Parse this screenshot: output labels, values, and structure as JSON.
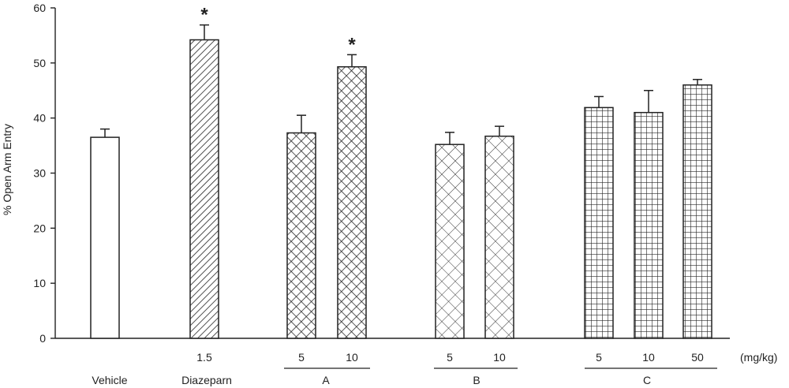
{
  "chart_data": {
    "type": "bar",
    "ylabel": "% Open Arm Entry",
    "ylim": [
      0,
      60
    ],
    "yticks": [
      0,
      10,
      20,
      30,
      40,
      50,
      60
    ],
    "unit_label": "(mg/kg)",
    "significance_marker": "*",
    "bars": [
      {
        "group": "Vehicle",
        "dose": "",
        "value": 36.5,
        "error": 1.5,
        "significant": false,
        "pattern": "none"
      },
      {
        "group": "Diazeparn",
        "dose": "1.5",
        "value": 54.2,
        "error": 2.7,
        "significant": true,
        "pattern": "diagonal"
      },
      {
        "group": "A",
        "dose": "5",
        "value": 37.3,
        "error": 3.2,
        "significant": false,
        "pattern": "dense-cross"
      },
      {
        "group": "A",
        "dose": "10",
        "value": 49.3,
        "error": 2.2,
        "significant": true,
        "pattern": "dense-cross"
      },
      {
        "group": "B",
        "dose": "5",
        "value": 35.2,
        "error": 2.2,
        "significant": false,
        "pattern": "cross"
      },
      {
        "group": "B",
        "dose": "10",
        "value": 36.7,
        "error": 1.8,
        "significant": false,
        "pattern": "cross"
      },
      {
        "group": "C",
        "dose": "5",
        "value": 41.9,
        "error": 2.0,
        "significant": false,
        "pattern": "grid"
      },
      {
        "group": "C",
        "dose": "10",
        "value": 41.0,
        "error": 4.0,
        "significant": false,
        "pattern": "grid"
      },
      {
        "group": "C",
        "dose": "50",
        "value": 46.0,
        "error": 1.0,
        "significant": false,
        "pattern": "grid"
      }
    ],
    "groups": [
      "Vehicle",
      "Diazeparn",
      "A",
      "B",
      "C"
    ]
  }
}
